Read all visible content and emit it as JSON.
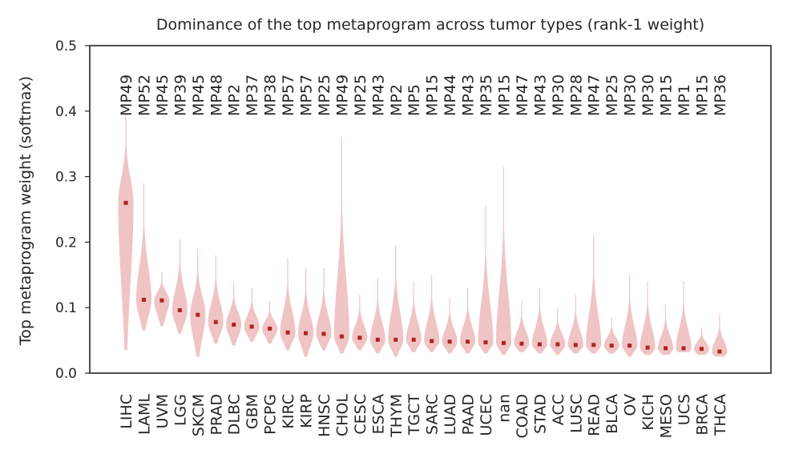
{
  "chart_data": {
    "type": "violin",
    "title": "Dominance of the top metaprogram across tumor types (rank-1 weight)",
    "ylabel": "Top metaprogram weight (softmax)",
    "xlabel": "",
    "ylim": [
      0.0,
      0.5
    ],
    "yticks": [
      "0.0",
      "0.1",
      "0.2",
      "0.3",
      "0.4",
      "0.5"
    ],
    "grid": false,
    "colors": {
      "violin": "#f0c4c4",
      "median": "#b22222",
      "axis": "#262626"
    },
    "categories": [
      "LIHC",
      "LAML",
      "UVM",
      "LGG",
      "SKCM",
      "PRAD",
      "DLBC",
      "GBM",
      "PCPG",
      "KIRC",
      "KIRP",
      "HNSC",
      "CHOL",
      "CESC",
      "ESCA",
      "THYM",
      "TGCT",
      "SARC",
      "LUAD",
      "PAAD",
      "UCEC",
      "nan",
      "COAD",
      "STAD",
      "ACC",
      "LUSC",
      "READ",
      "BLCA",
      "OV",
      "KICH",
      "MESO",
      "UCS",
      "BRCA",
      "THCA"
    ],
    "metaprograms": [
      "MP49",
      "MP52",
      "MP45",
      "MP39",
      "MP45",
      "MP48",
      "MP2",
      "MP37",
      "MP38",
      "MP57",
      "MP57",
      "MP25",
      "MP49",
      "MP25",
      "MP43",
      "MP2",
      "MP5",
      "MP15",
      "MP44",
      "MP43",
      "MP35",
      "MP15",
      "MP47",
      "MP43",
      "MP30",
      "MP28",
      "MP47",
      "MP25",
      "MP30",
      "MP30",
      "MP15",
      "MP1",
      "MP15",
      "MP36"
    ],
    "medians": [
      0.26,
      0.112,
      0.111,
      0.096,
      0.089,
      0.078,
      0.074,
      0.071,
      0.068,
      0.062,
      0.061,
      0.06,
      0.056,
      0.054,
      0.051,
      0.051,
      0.051,
      0.049,
      0.048,
      0.048,
      0.047,
      0.046,
      0.045,
      0.044,
      0.044,
      0.043,
      0.043,
      0.042,
      0.042,
      0.039,
      0.038,
      0.038,
      0.037,
      0.033
    ],
    "mins": [
      0.035,
      0.065,
      0.072,
      0.06,
      0.025,
      0.045,
      0.042,
      0.048,
      0.045,
      0.035,
      0.025,
      0.035,
      0.03,
      0.035,
      0.03,
      0.025,
      0.032,
      0.032,
      0.03,
      0.03,
      0.03,
      0.028,
      0.032,
      0.03,
      0.028,
      0.03,
      0.03,
      0.03,
      0.025,
      0.028,
      0.028,
      0.032,
      0.028,
      0.025
    ],
    "maxs": [
      0.395,
      0.29,
      0.155,
      0.205,
      0.19,
      0.18,
      0.14,
      0.13,
      0.11,
      0.175,
      0.16,
      0.16,
      0.36,
      0.12,
      0.145,
      0.195,
      0.14,
      0.15,
      0.115,
      0.13,
      0.255,
      0.315,
      0.11,
      0.13,
      0.1,
      0.12,
      0.21,
      0.085,
      0.15,
      0.14,
      0.105,
      0.14,
      0.07,
      0.09
    ]
  }
}
